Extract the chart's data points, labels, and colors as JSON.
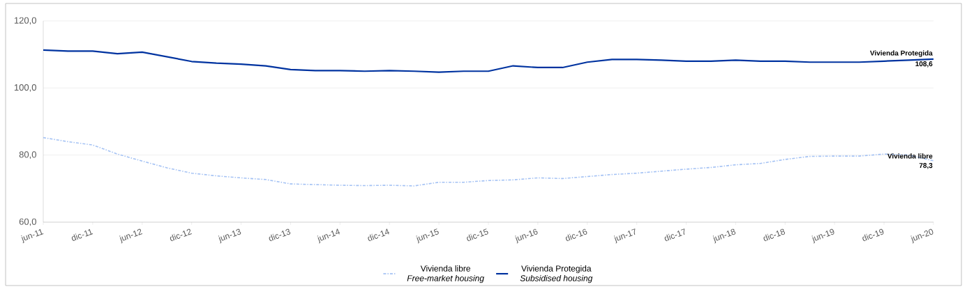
{
  "chart_data": {
    "type": "line",
    "categories": [
      "jun-11",
      null,
      "dic-11",
      null,
      "jun-12",
      null,
      "dic-12",
      null,
      "jun-13",
      null,
      "dic-13",
      null,
      "jun-14",
      null,
      "dic-14",
      null,
      "jun-15",
      null,
      "dic-15",
      null,
      "jun-16",
      null,
      "dic-16",
      null,
      "jun-17",
      null,
      "dic-17",
      null,
      "jun-18",
      null,
      "dic-18",
      null,
      "jun-19",
      null,
      "dic-19",
      null,
      "jun-20"
    ],
    "series": [
      {
        "name": "Vivienda libre",
        "color": "#a4c2f4",
        "line_style": "dashed",
        "values": [
          85.2,
          84.0,
          83.0,
          80.3,
          78.2,
          76.2,
          74.6,
          73.8,
          73.2,
          72.7,
          71.4,
          71.2,
          71.0,
          70.9,
          71.0,
          70.8,
          71.9,
          71.9,
          72.4,
          72.6,
          73.2,
          73.0,
          73.6,
          74.2,
          74.6,
          75.2,
          75.8,
          76.3,
          77.1,
          77.5,
          78.7,
          79.6,
          79.7,
          79.7,
          80.3,
          80.0,
          78.3
        ],
        "value_labels": [
          null,
          null,
          null,
          null,
          null,
          null,
          null,
          null,
          null,
          null,
          null,
          null,
          null,
          null,
          null,
          null,
          null,
          null,
          null,
          null,
          null,
          null,
          null,
          null,
          null,
          null,
          null,
          null,
          null,
          null,
          null,
          null,
          null,
          null,
          null,
          null,
          "78,3"
        ]
      },
      {
        "name": "Vivienda Protegida",
        "color": "#0033a0",
        "line_style": "solid",
        "values": [
          111.3,
          111.0,
          111.0,
          110.2,
          110.7,
          109.3,
          107.9,
          107.4,
          107.1,
          106.6,
          105.5,
          105.2,
          105.2,
          105.0,
          105.2,
          105.0,
          104.7,
          105.0,
          105.0,
          106.6,
          106.1,
          106.1,
          107.7,
          108.5,
          108.5,
          108.3,
          108.0,
          108.0,
          108.3,
          108.0,
          108.0,
          107.7,
          107.7,
          107.7,
          108.0,
          108.3,
          108.6
        ],
        "value_labels": [
          null,
          null,
          null,
          null,
          null,
          null,
          null,
          null,
          null,
          null,
          null,
          null,
          null,
          null,
          null,
          null,
          null,
          null,
          null,
          null,
          null,
          null,
          null,
          null,
          null,
          null,
          null,
          null,
          null,
          null,
          null,
          null,
          null,
          null,
          null,
          null,
          "108,6"
        ]
      }
    ],
    "annotations": [
      "Free-market housing",
      "Subsidised housing"
    ],
    "ylim": [
      60,
      120
    ],
    "yticks": [
      {
        "value": 60,
        "label": "60,0"
      },
      {
        "value": 80,
        "label": "80,0"
      },
      {
        "value": 100,
        "label": "100,0"
      },
      {
        "value": 120,
        "label": "120,0"
      }
    ],
    "grid": "y",
    "legend": "bottom",
    "marker": "none"
  }
}
